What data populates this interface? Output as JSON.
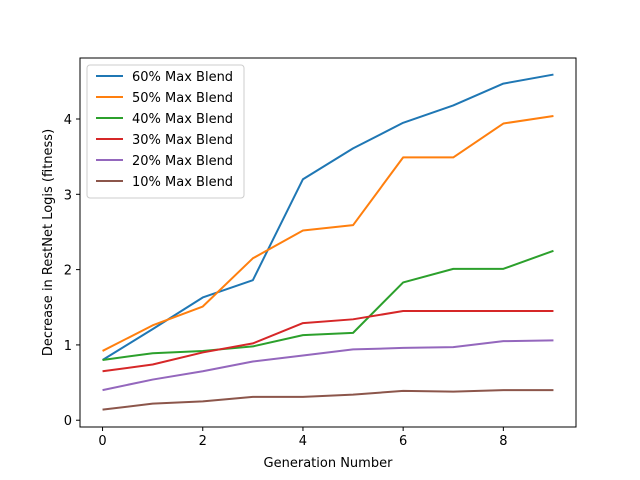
{
  "chart_data": {
    "type": "line",
    "xlabel": "Generation Number",
    "ylabel": "Decrease in RestNet Logis (fitness)",
    "x": [
      0,
      1,
      2,
      3,
      4,
      5,
      6,
      7,
      8,
      9
    ],
    "xlim": [
      -0.45,
      9.45
    ],
    "ylim": [
      -0.09,
      4.81
    ],
    "xticks": [
      0,
      2,
      4,
      6,
      8
    ],
    "yticks": [
      0,
      1,
      2,
      3,
      4
    ],
    "grid": false,
    "legend_position": "top-left",
    "series": [
      {
        "name": "60% Max Blend",
        "color": "#1f77b4",
        "values": [
          0.8,
          1.21,
          1.63,
          1.86,
          3.2,
          3.61,
          3.95,
          4.18,
          4.47,
          4.59
        ]
      },
      {
        "name": "50% Max Blend",
        "color": "#ff7f0e",
        "values": [
          0.92,
          1.26,
          1.51,
          2.15,
          2.52,
          2.59,
          3.49,
          3.49,
          3.94,
          4.04
        ]
      },
      {
        "name": "40% Max Blend",
        "color": "#2ca02c",
        "values": [
          0.8,
          0.89,
          0.92,
          0.98,
          1.13,
          1.16,
          1.83,
          2.01,
          2.01,
          2.25
        ]
      },
      {
        "name": "30% Max Blend",
        "color": "#d62728",
        "values": [
          0.65,
          0.74,
          0.9,
          1.02,
          1.29,
          1.34,
          1.45,
          1.45,
          1.45,
          1.45
        ]
      },
      {
        "name": "20% Max Blend",
        "color": "#9467bd",
        "values": [
          0.4,
          0.54,
          0.65,
          0.78,
          0.86,
          0.94,
          0.96,
          0.97,
          1.05,
          1.06
        ]
      },
      {
        "name": "10% Max Blend",
        "color": "#8c564b",
        "values": [
          0.14,
          0.22,
          0.25,
          0.31,
          0.31,
          0.34,
          0.39,
          0.38,
          0.4,
          0.4
        ]
      }
    ]
  }
}
